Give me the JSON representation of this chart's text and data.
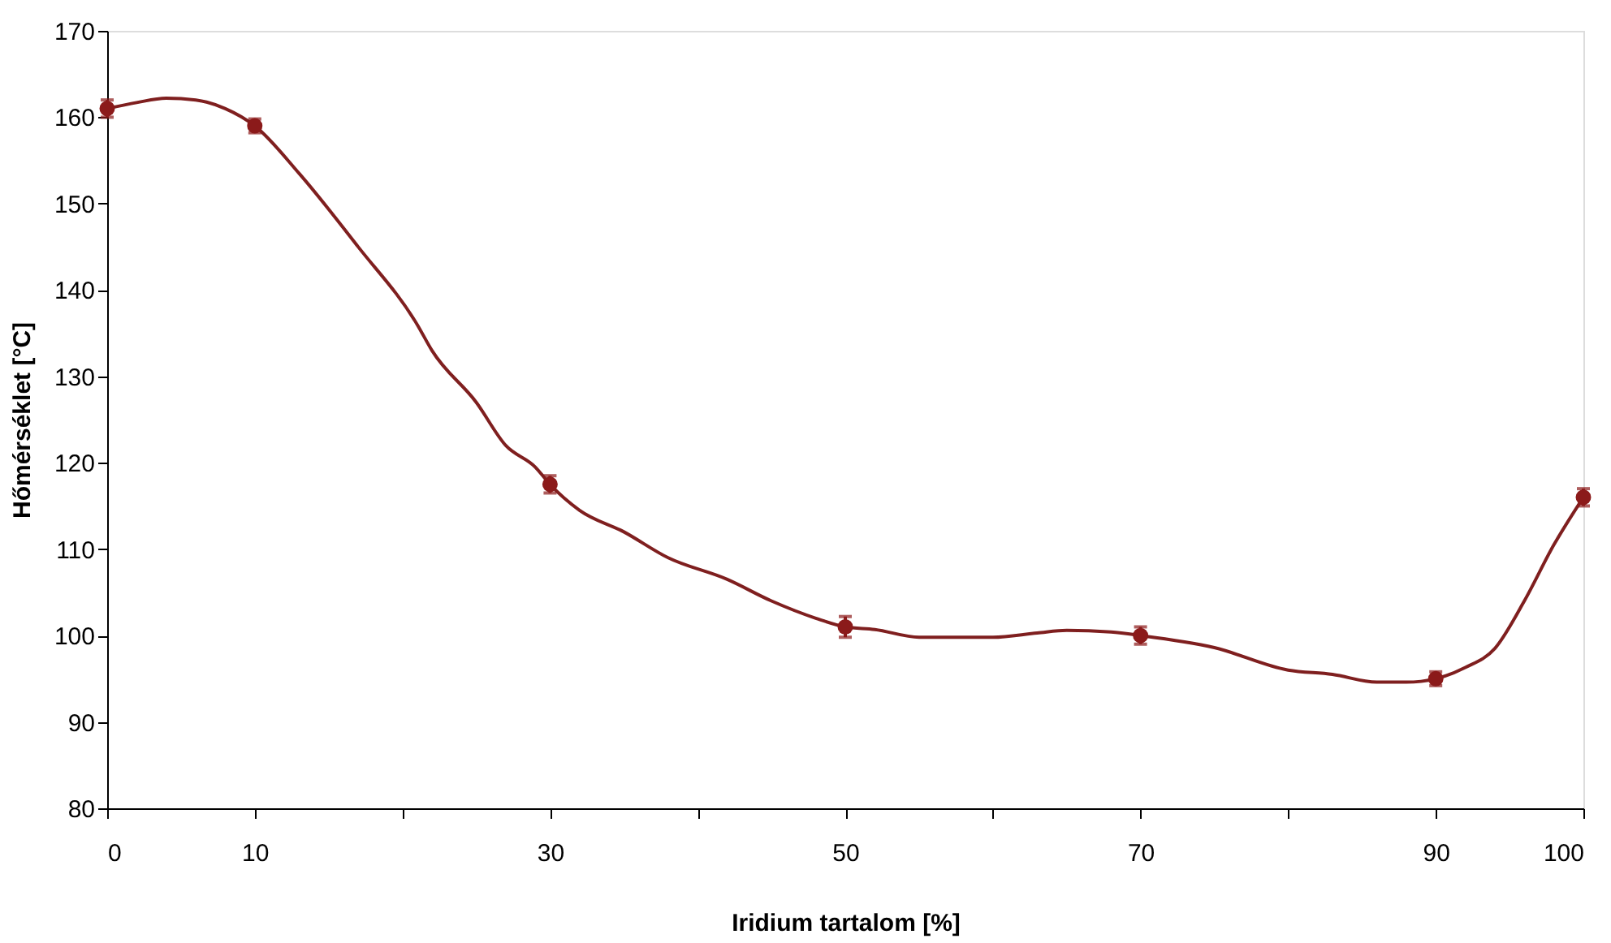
{
  "chart_data": {
    "type": "line",
    "xlabel": "Iridium tartalom [%]",
    "ylabel": "Hőmérséklet [°C]",
    "xlim": [
      0,
      100
    ],
    "ylim": [
      80,
      170
    ],
    "xticks": [
      0,
      10,
      {
        "value": 20,
        "label": null
      },
      30,
      {
        "value": 40,
        "label": null
      },
      50,
      {
        "value": 60,
        "label": null
      },
      70,
      {
        "value": 80,
        "label": null
      },
      90,
      100
    ],
    "yticks": [
      80,
      90,
      100,
      110,
      120,
      130,
      140,
      150,
      160,
      170
    ],
    "grid": false,
    "line_style": "solid",
    "series": [
      {
        "color": "#7f1f1f",
        "marker": "none",
        "x": [
          0,
          2,
          4,
          6,
          8,
          10,
          13,
          17,
          21,
          22,
          25,
          27,
          29,
          30,
          32,
          35,
          38,
          42,
          45,
          48,
          50,
          52,
          55,
          60,
          63,
          65,
          68,
          70,
          75,
          80,
          83,
          86,
          88,
          90,
          92,
          94,
          96,
          98,
          100
        ],
        "values": [
          161,
          161.7,
          162.2,
          162,
          161,
          159,
          153.5,
          145,
          136,
          133,
          127,
          122,
          119.5,
          117.5,
          114.5,
          112,
          109,
          106.5,
          104,
          102,
          101,
          100.7,
          99.8,
          99.8,
          100.3,
          100.6,
          100.4,
          100,
          98.6,
          96,
          95.5,
          94.6,
          94.6,
          95,
          96.3,
          98.5,
          104,
          110.5,
          116
        ]
      },
      {
        "type": "scatter",
        "color": "#8b1a1a",
        "marker": "circle",
        "x": [
          0,
          10,
          30,
          50,
          70,
          90,
          100
        ],
        "values": [
          161,
          159,
          117.5,
          101,
          100,
          95,
          116
        ],
        "errors": [
          1,
          0.8,
          1,
          1.2,
          1,
          0.8,
          1
        ]
      }
    ]
  }
}
